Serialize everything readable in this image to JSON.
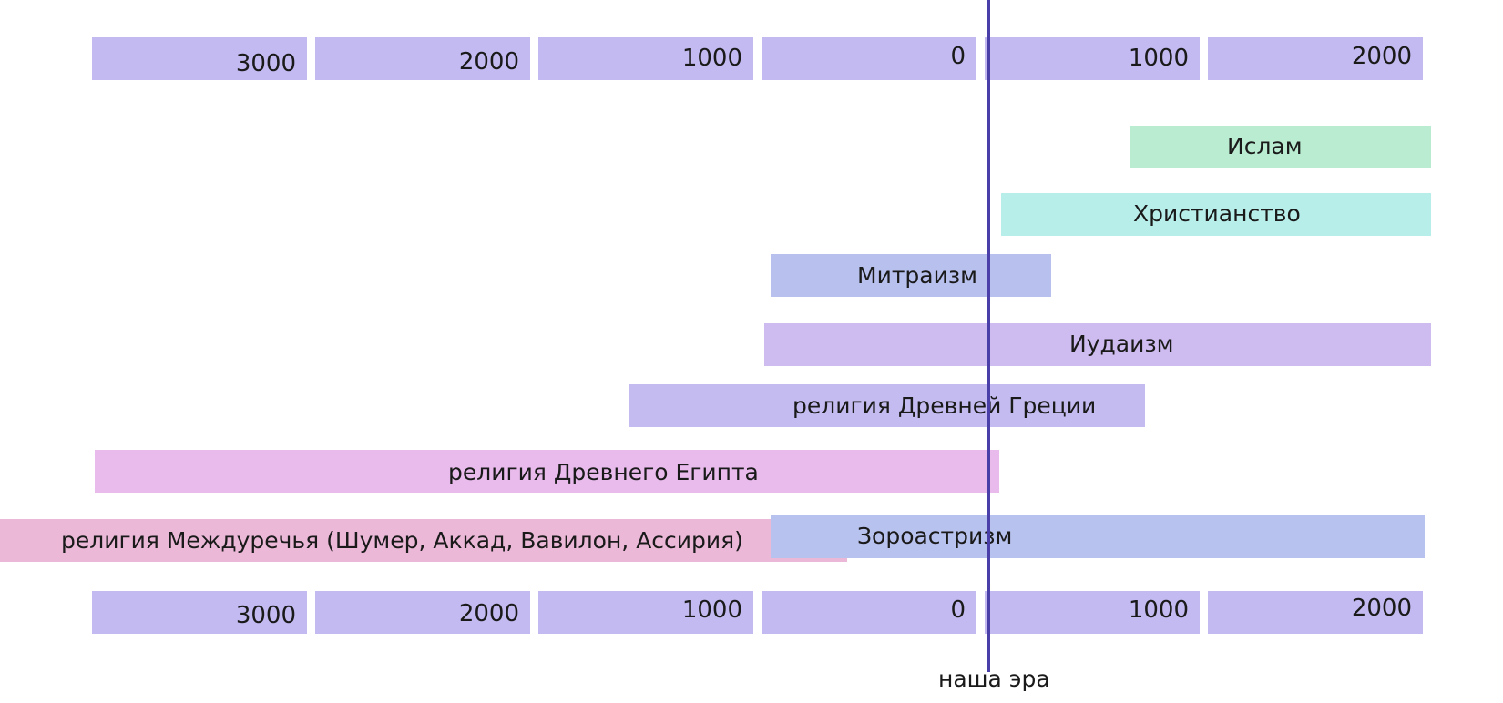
{
  "colors": {
    "scale": "#c2baf0",
    "era_line": "#4a3fa8",
    "islam": "#b9ecd1",
    "christianity": "#b8eeea",
    "mithraism": "#b8c0ee",
    "judaism": "#cebbf0",
    "greece": "#c4bcf0",
    "egypt": "#e8bbec",
    "mesopotamia": "#ebb8d8",
    "zoroastrianism": "#b8c2ee"
  },
  "scale_top": [
    "3000",
    "2000",
    "1000",
    "0",
    "1000",
    "2000"
  ],
  "scale_bottom": [
    "3000",
    "2000",
    "1000",
    "0",
    "1000",
    "2000"
  ],
  "era_label": "наша эра",
  "religions": {
    "islam": "Ислам",
    "christianity": "Христианство",
    "mithraism": "Митраизм",
    "judaism": "Иудаизм",
    "greece": "религия Древней Греции",
    "egypt": "религия Древнего Египта",
    "mesopotamia": "религия Междуречья (Шумер, Аккад, Вавилон, Ассирия)",
    "zoroastrianism": "Зороастризм"
  }
}
